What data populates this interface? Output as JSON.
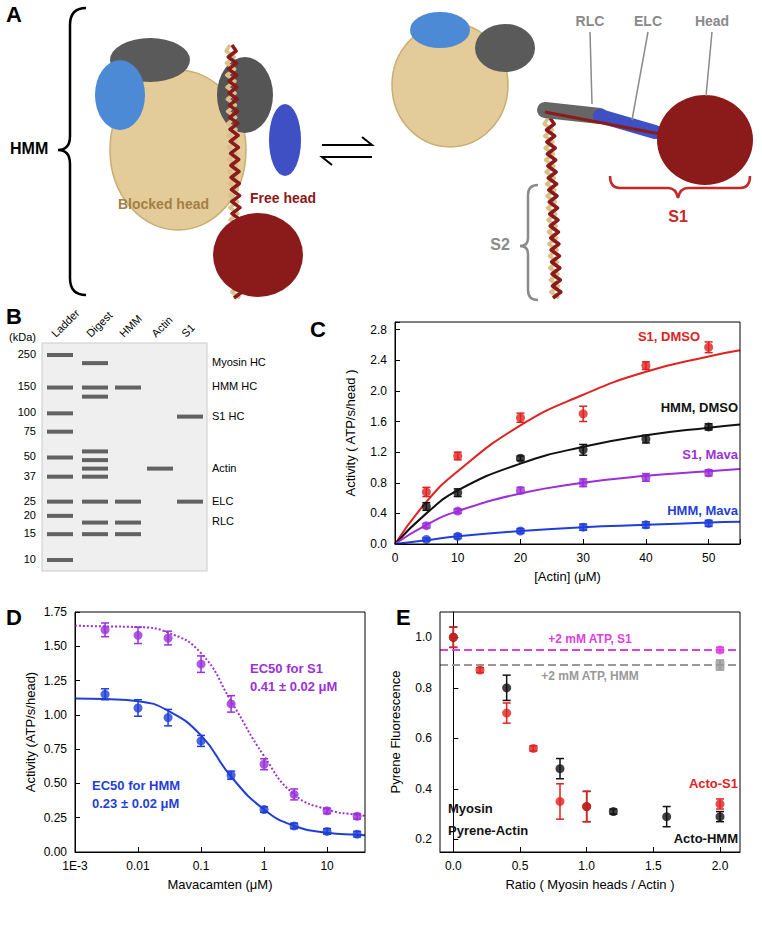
{
  "figure": {
    "A": {
      "letter": "A",
      "hmm": "HMM",
      "blocked_head": "Blocked head",
      "free_head": "Free head",
      "rlc": "RLC",
      "elc": "ELC",
      "head": "Head",
      "s1": "S1",
      "s2": "S2"
    },
    "B": {
      "letter": "B",
      "unit": "(kDa)",
      "lanes": [
        "Ladder",
        "Digest",
        "HMM",
        "Actin",
        "S1"
      ],
      "ladder_kda": [
        250,
        150,
        100,
        75,
        50,
        37,
        25,
        20,
        15,
        10
      ],
      "bands_kda": [
        [
          250,
          150,
          100,
          75,
          50,
          37,
          25,
          20,
          15,
          10
        ],
        [
          220,
          150,
          130,
          55,
          48,
          42,
          37,
          25,
          18,
          15
        ],
        [
          150,
          25,
          18,
          15
        ],
        [
          42
        ],
        [
          95,
          25
        ]
      ],
      "band_labels": [
        {
          "label": "Myosin HC",
          "kda": 220
        },
        {
          "label": "HMM HC",
          "kda": 150
        },
        {
          "label": "S1 HC",
          "kda": 95
        },
        {
          "label": "Actin",
          "kda": 42
        },
        {
          "label": "ELC",
          "kda": 25
        },
        {
          "label": "RLC",
          "kda": 18
        }
      ]
    }
  },
  "chart_data": [
    {
      "panel": "C",
      "type": "scatter",
      "x_label": "[Actin] (μM)",
      "y_label": "Activity ( ATP/s/head )",
      "xlim": [
        0,
        55
      ],
      "xticks": [
        0,
        10,
        20,
        30,
        40,
        50
      ],
      "ylim": [
        0,
        2.9
      ],
      "yticks": [
        {
          "value": 0,
          "label": "0.0"
        },
        0.4,
        0.8,
        1.2,
        1.6,
        {
          "value": 2,
          "label": "2.0"
        },
        2.4,
        2.8
      ],
      "grid": false,
      "series": [
        {
          "name": "S1, DMSO",
          "color": "#e0221f",
          "marker": "circle",
          "line_style": "solid",
          "x": [
            5,
            10,
            20,
            30,
            40,
            50
          ],
          "values": [
            0.68,
            1.15,
            1.65,
            1.7,
            2.33,
            2.57
          ],
          "errors": [
            0.06,
            0.05,
            0.06,
            0.1,
            0.05,
            0.07
          ],
          "fit": {
            "x": [
              0,
              5,
              10,
              20,
              30,
              40,
              50,
              55
            ],
            "values": [
              0,
              0.55,
              0.95,
              1.55,
              1.95,
              2.25,
              2.45,
              2.53
            ]
          }
        },
        {
          "name": "HMM, DMSO",
          "color": "#111111",
          "marker": "circle",
          "line_style": "solid",
          "x": [
            5,
            10,
            20,
            30,
            40,
            50
          ],
          "values": [
            0.49,
            0.67,
            1.12,
            1.23,
            1.37,
            1.53
          ],
          "errors": [
            0.05,
            0.05,
            0.03,
            0.07,
            0.05,
            0.04
          ],
          "fit": {
            "x": [
              0,
              5,
              10,
              20,
              30,
              40,
              50,
              55
            ],
            "values": [
              0,
              0.4,
              0.7,
              1.05,
              1.27,
              1.42,
              1.52,
              1.56
            ]
          }
        },
        {
          "name": "S1, Mava",
          "color": "#9b30d9",
          "marker": "circle",
          "line_style": "solid",
          "x": [
            5,
            10,
            20,
            30,
            40,
            50
          ],
          "values": [
            0.24,
            0.43,
            0.7,
            0.8,
            0.87,
            0.93
          ],
          "errors": [
            0.03,
            0.03,
            0.04,
            0.05,
            0.05,
            0.04
          ],
          "fit": {
            "x": [
              0,
              5,
              10,
              20,
              30,
              40,
              50,
              55
            ],
            "values": [
              0,
              0.25,
              0.43,
              0.66,
              0.8,
              0.89,
              0.95,
              0.98
            ]
          }
        },
        {
          "name": "HMM, Mava",
          "color": "#1f3fd8",
          "marker": "circle",
          "line_style": "solid",
          "x": [
            5,
            10,
            20,
            30,
            40,
            50
          ],
          "values": [
            0.06,
            0.1,
            0.17,
            0.22,
            0.25,
            0.27
          ],
          "errors": [
            0.02,
            0.03,
            0.03,
            0.04,
            0.04,
            0.04
          ],
          "fit": {
            "x": [
              0,
              5,
              10,
              20,
              30,
              40,
              50,
              55
            ],
            "values": [
              0,
              0.05,
              0.1,
              0.17,
              0.22,
              0.25,
              0.28,
              0.29
            ]
          }
        }
      ]
    },
    {
      "panel": "D",
      "type": "scatter",
      "x_label": "Mavacamten (μM)",
      "y_label": "Activity (ATP/s/head)",
      "log": "x",
      "xlim": [
        0.001,
        40
      ],
      "xticks": [
        {
          "value": 0.001,
          "label": "1E-3"
        },
        0.01,
        0.1,
        1,
        10
      ],
      "ylim": [
        0,
        1.75
      ],
      "yticks": [
        {
          "value": 0,
          "label": "0.00"
        },
        0.25,
        {
          "value": 0.5,
          "label": "0.50"
        },
        0.75,
        {
          "value": 1,
          "label": "1.00"
        },
        1.25,
        {
          "value": 1.5,
          "label": "1.50"
        },
        1.75
      ],
      "grid": false,
      "series": [
        {
          "color": "#9b30d9",
          "marker": "circle",
          "line_style": "dotted",
          "x": [
            0.003,
            0.01,
            0.03,
            0.1,
            0.3,
            1,
            3,
            10,
            30
          ],
          "values": [
            1.62,
            1.58,
            1.56,
            1.37,
            1.08,
            0.64,
            0.42,
            0.3,
            0.26
          ],
          "errors": [
            0.05,
            0.06,
            0.05,
            0.06,
            0.06,
            0.04,
            0.04,
            0.02,
            0.02
          ],
          "fit": {
            "x": [
              0.001,
              0.003,
              0.01,
              0.03,
              0.1,
              0.3,
              1,
              3,
              10,
              30,
              40
            ],
            "values": [
              1.65,
              1.645,
              1.64,
              1.6,
              1.45,
              1.1,
              0.7,
              0.42,
              0.31,
              0.27,
              0.265
            ]
          }
        },
        {
          "color": "#1f3fd8",
          "marker": "circle",
          "line_style": "solid",
          "x": [
            0.003,
            0.01,
            0.03,
            0.1,
            0.3,
            1,
            3,
            10,
            30
          ],
          "values": [
            1.15,
            1.05,
            0.98,
            0.81,
            0.56,
            0.31,
            0.19,
            0.15,
            0.13
          ],
          "errors": [
            0.04,
            0.06,
            0.06,
            0.04,
            0.03,
            0.02,
            0.02,
            0.02,
            0.02
          ],
          "fit": {
            "x": [
              0.001,
              0.003,
              0.01,
              0.03,
              0.1,
              0.3,
              1,
              3,
              10,
              30,
              40
            ],
            "values": [
              1.12,
              1.115,
              1.1,
              1.03,
              0.85,
              0.55,
              0.31,
              0.19,
              0.14,
              0.125,
              0.122
            ]
          }
        }
      ],
      "annotations": [
        {
          "text": "EC50 for S1",
          "color": "#9b30d9"
        },
        {
          "text": "0.41 ± 0.02 μM",
          "color": "#9b30d9"
        },
        {
          "text": "EC50 for HMM",
          "color": "#1f3fd8"
        },
        {
          "text": "0.23 ± 0.02 μM",
          "color": "#1f3fd8"
        }
      ]
    },
    {
      "panel": "E",
      "type": "scatter",
      "x_label": "Ratio ( Myosin heads / Actin )",
      "y_label": "Pyrene Fluorescence",
      "xlim": [
        -0.1,
        2.15
      ],
      "xticks": [
        {
          "value": 0,
          "label": "0.0"
        },
        0.5,
        {
          "value": 1,
          "label": "1.0"
        },
        1.5,
        {
          "value": 2,
          "label": "2.0"
        }
      ],
      "ylim": [
        0.15,
        1.1
      ],
      "yticks": [
        0.2,
        0.4,
        0.6,
        0.8,
        {
          "value": 1,
          "label": "1.0"
        }
      ],
      "grid": false,
      "series": [
        {
          "name": "Acto-HMM",
          "color": "#111111",
          "marker": "circle",
          "x": [
            0,
            0.4,
            0.8,
            1.0,
            1.2,
            1.6,
            2.0
          ],
          "values": [
            1.0,
            0.8,
            0.48,
            0.33,
            0.31,
            0.29,
            0.29
          ],
          "errors": [
            0.04,
            0.05,
            0.04,
            0.06,
            0.01,
            0.04,
            0.02
          ]
        },
        {
          "name": "Acto-S1",
          "color": "#e0221f",
          "marker": "circle",
          "x": [
            0,
            0.2,
            0.4,
            0.6,
            0.8,
            1.0,
            2.0
          ],
          "values": [
            1.0,
            0.87,
            0.7,
            0.56,
            0.35,
            0.33,
            0.34
          ],
          "errors": [
            0.04,
            0.01,
            0.04,
            0.01,
            0.07,
            0.06,
            0.02
          ]
        },
        {
          "name": "+2 mM ATP, S1",
          "color": "#e040e0",
          "marker": "circle",
          "line_style": "dashed",
          "x": [
            2.0
          ],
          "values": [
            0.95
          ],
          "errors": [
            0.01
          ]
        },
        {
          "name": "+2 mM ATP, HMM",
          "color": "#999999",
          "marker": "square",
          "line_style": "dashed",
          "x": [
            2.0
          ],
          "values": [
            0.89
          ],
          "errors": [
            0.02
          ]
        }
      ],
      "annotations": [
        {
          "text": "Myosin",
          "color": "#111111"
        },
        {
          "text": "Pyrene-Actin",
          "color": "#111111"
        }
      ]
    }
  ]
}
